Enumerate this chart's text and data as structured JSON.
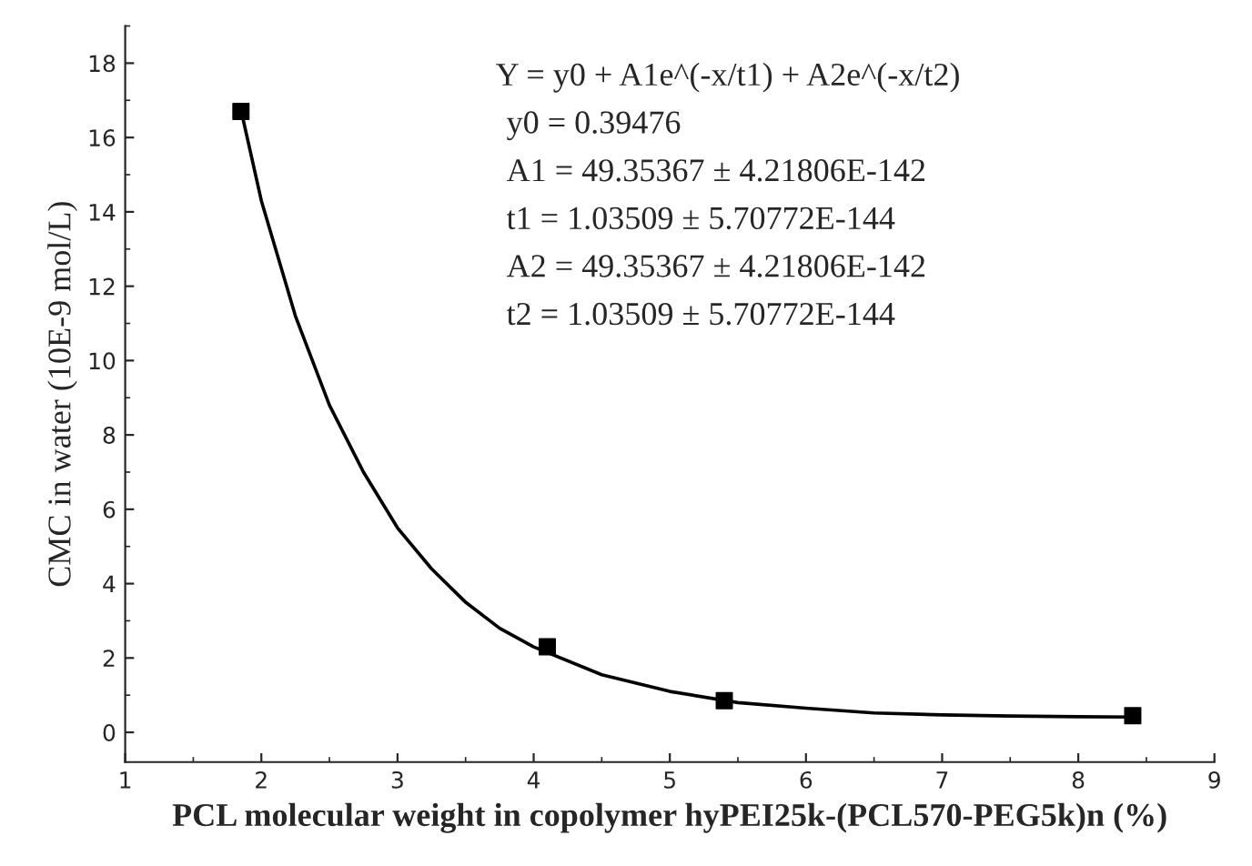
{
  "chart_data": {
    "type": "scatter",
    "xlabel": "PCL molecular weight in copolymer hyPEI25k-(PCL570-PEG5k)n (%)",
    "ylabel": "CMC in water (10E-9 mol/L)",
    "annotations": [
      "Y = y0 + A1e^(-x/t1) + A2e^(-x/t2)",
      "y0 = 0.39476",
      "A1 = 49.35367 ± 4.21806E-142",
      "t1 = 1.03509 ± 5.70772E-144",
      "A2 = 49.35367 ± 4.21806E-142",
      "t2 = 1.03509 ± 5.70772E-144"
    ],
    "xlim": [
      1,
      9
    ],
    "xticks": [
      1,
      2,
      3,
      4,
      5,
      6,
      7,
      8,
      9
    ],
    "ylim": [
      -0.8,
      19
    ],
    "yticks": [
      0,
      2,
      4,
      6,
      8,
      10,
      12,
      14,
      16,
      18
    ],
    "grid": false,
    "legend": false,
    "series": [
      {
        "type": "line",
        "color": "#000000",
        "marker": "none",
        "line_style": "solid",
        "x": [
          1.85,
          2.0,
          2.25,
          2.5,
          2.75,
          3.0,
          3.25,
          3.5,
          3.75,
          4.0,
          4.5,
          5.0,
          5.5,
          6.0,
          6.5,
          7.0,
          7.5,
          8.0,
          8.4
        ],
        "values": [
          16.75,
          14.3,
          11.2,
          8.8,
          7.0,
          5.5,
          4.4,
          3.5,
          2.8,
          2.3,
          1.55,
          1.1,
          0.8,
          0.65,
          0.52,
          0.47,
          0.44,
          0.42,
          0.41
        ]
      },
      {
        "color": "#000000",
        "marker": "square",
        "x": [
          1.85,
          4.1,
          5.4,
          8.4
        ],
        "values": [
          16.7,
          2.3,
          0.85,
          0.45
        ]
      }
    ]
  }
}
